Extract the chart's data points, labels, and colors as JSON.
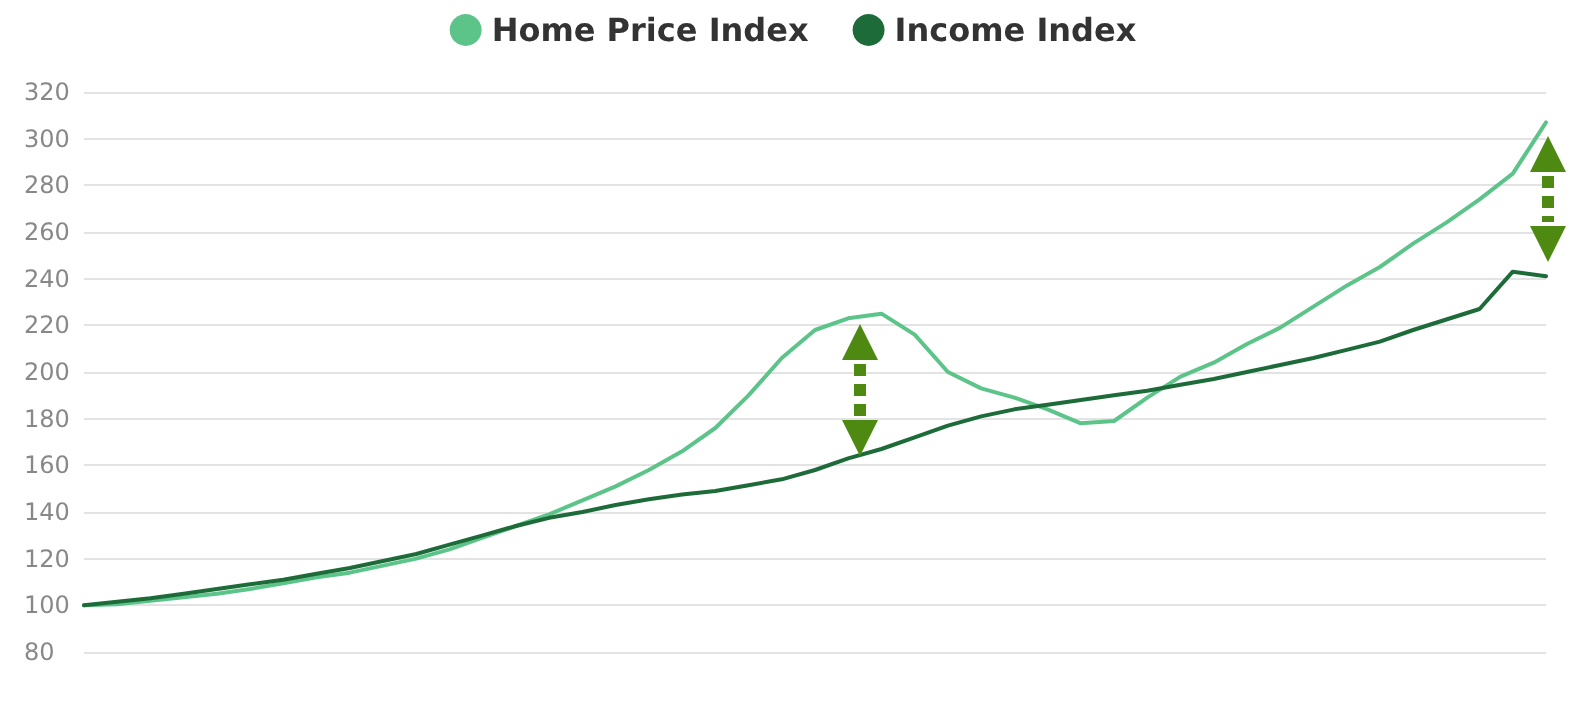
{
  "chart_data": {
    "type": "line",
    "categories": [
      null,
      null,
      null,
      null,
      null,
      null,
      null,
      null,
      null,
      null,
      null,
      null,
      null,
      null,
      null,
      null,
      null,
      null,
      null,
      null,
      null,
      null,
      null,
      null,
      null,
      null,
      null,
      null,
      null,
      null,
      null,
      null,
      null,
      null,
      null,
      null,
      null,
      null,
      null,
      null,
      null,
      null,
      null,
      null,
      null
    ],
    "series": [
      {
        "name": "Home Price Index",
        "color": "#5cc489",
        "values": [
          100,
          100.5,
          102,
          103.5,
          105,
          107,
          109.5,
          112,
          114,
          117,
          120,
          124,
          129,
          134,
          139,
          145,
          151,
          158,
          166,
          176,
          190,
          206,
          218,
          223,
          225,
          216,
          200,
          193,
          189,
          184,
          178,
          179,
          189,
          198,
          204,
          212,
          219,
          228,
          237,
          245,
          255,
          264,
          274,
          285,
          307
        ]
      },
      {
        "name": "Income Index",
        "color": "#1e6b3a",
        "values": [
          100,
          101.5,
          103,
          105,
          107,
          109,
          111,
          113.5,
          116,
          119,
          122,
          126,
          130,
          134,
          137.5,
          140,
          143,
          145.5,
          147.5,
          149,
          151.5,
          154,
          158,
          163,
          167,
          172,
          177,
          181,
          184,
          186,
          188,
          190,
          192,
          194.5,
          197,
          200,
          203,
          206,
          209.5,
          213,
          218,
          222.5,
          227,
          243,
          241
        ]
      }
    ],
    "ylim": [
      80,
      320
    ],
    "yticks": [
      80,
      100,
      120,
      140,
      160,
      180,
      200,
      220,
      240,
      260,
      280,
      300,
      320
    ],
    "grid": "y",
    "legend": "top",
    "marker": "none",
    "line_style": "solid",
    "tick_labels": "y"
  }
}
